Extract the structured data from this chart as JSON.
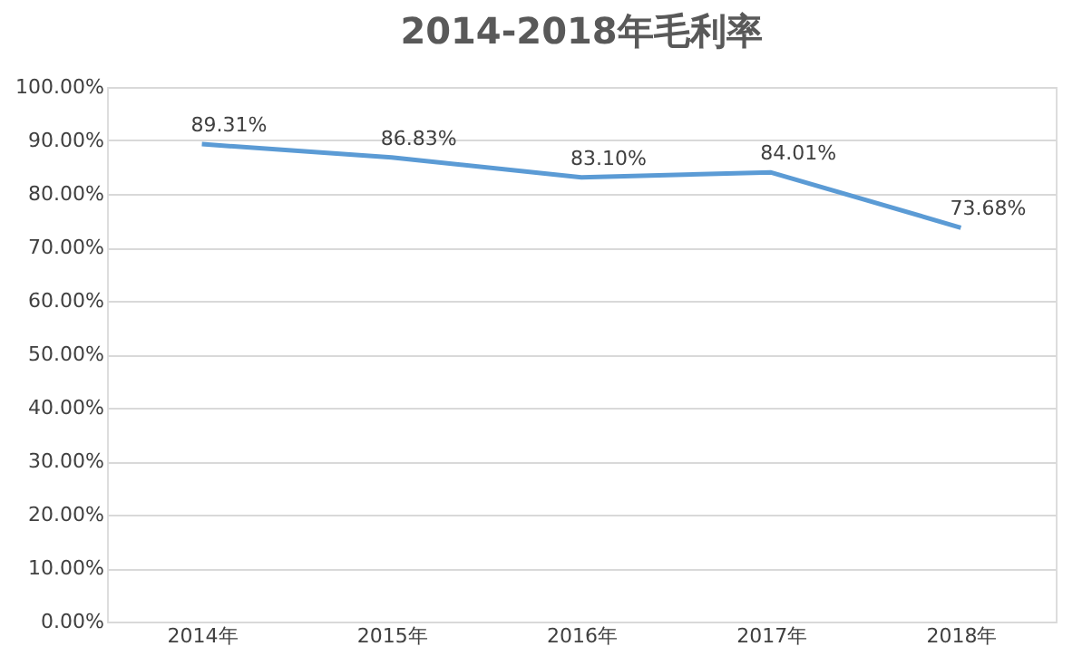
{
  "chart_data": {
    "type": "line",
    "title": "2014-2018年毛利率",
    "categories": [
      "2014年",
      "2015年",
      "2016年",
      "2017年",
      "2018年"
    ],
    "series": [
      {
        "color": "#5b9bd5",
        "values": [
          89.31,
          86.83,
          83.1,
          84.01,
          73.68
        ],
        "value_labels": [
          "89.31%",
          "86.83%",
          "83.10%",
          "84.01%",
          "73.68%"
        ]
      }
    ],
    "ylim": [
      0,
      100
    ],
    "yticks": [
      {
        "value": 0,
        "label": "0.00%"
      },
      {
        "value": 10,
        "label": "10.00%"
      },
      {
        "value": 20,
        "label": "20.00%"
      },
      {
        "value": 30,
        "label": "30.00%"
      },
      {
        "value": 40,
        "label": "40.00%"
      },
      {
        "value": 50,
        "label": "50.00%"
      },
      {
        "value": 60,
        "label": "60.00%"
      },
      {
        "value": 70,
        "label": "70.00%"
      },
      {
        "value": 80,
        "label": "80.00%"
      },
      {
        "value": 90,
        "label": "90.00%"
      },
      {
        "value": 100,
        "label": "100.00%"
      }
    ],
    "grid": "y",
    "legend": false,
    "marker": "none",
    "line_style": "solid"
  }
}
